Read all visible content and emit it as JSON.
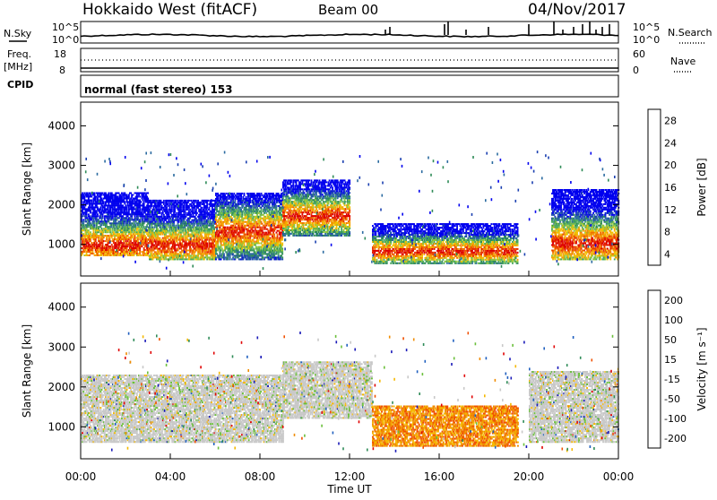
{
  "header": {
    "station": "Hokkaido West (fitACF)",
    "beam": "Beam 00",
    "date": "04/Nov/2017"
  },
  "params": {
    "nsky_label": "N.Sky",
    "nsearch_label": "N.Search",
    "noise_ticks": [
      "10^5",
      "10^0"
    ],
    "freq_label": "Freq.",
    "freq_unit": "[MHz]",
    "freq_ticks": [
      "18",
      "8"
    ],
    "nave_label": "Nave",
    "nave_ticks": [
      "60",
      "0"
    ],
    "cpid_label": "CPID",
    "cpid_text": "normal (fast stereo) 153"
  },
  "colors": {
    "power": [
      "#0000ee",
      "#1a3fb0",
      "#2a6aa0",
      "#2e8b57",
      "#4aa860",
      "#8cc63e",
      "#f0c000",
      "#f5a000",
      "#f07000",
      "#e83000",
      "#dd0000"
    ],
    "velocity": [
      "#1a1ab8",
      "#1f5fbf",
      "#2e8b57",
      "#6abf3a",
      "#c8c8c8",
      "#c8c8c8",
      "#f5b800",
      "#f08c00",
      "#f05000",
      "#e00000"
    ]
  },
  "chart_data": [
    {
      "type": "heatmap",
      "name": "power",
      "ylabel": "Slant Range [km]",
      "yticks": [
        1000,
        2000,
        3000,
        4000
      ],
      "ylim": [
        200,
        4600
      ],
      "xlim_hours": [
        0,
        24
      ],
      "xticks": [
        "00:00",
        "04:00",
        "08:00",
        "12:00",
        "16:00",
        "20:00",
        "00:00"
      ],
      "colorbar": {
        "label": "Power [dB]",
        "ticks": [
          "28",
          "24",
          "20",
          "16",
          "12",
          "8",
          "4"
        ],
        "range": [
          0,
          30
        ]
      },
      "echo_bands": [
        {
          "hours": [
            0,
            3
          ],
          "range_km": [
            700,
            2300
          ],
          "peak_km": 950
        },
        {
          "hours": [
            3,
            6
          ],
          "range_km": [
            600,
            2100
          ],
          "peak_km": 950
        },
        {
          "hours": [
            6,
            9
          ],
          "range_km": [
            600,
            2300
          ],
          "peak_km": 1300
        },
        {
          "hours": [
            9,
            12
          ],
          "range_km": [
            1200,
            2600
          ],
          "peak_km": 1700
        },
        {
          "hours": [
            13,
            16
          ],
          "range_km": [
            500,
            1500
          ],
          "peak_km": 800
        },
        {
          "hours": [
            16,
            19.5
          ],
          "range_km": [
            500,
            1500
          ],
          "peak_km": 800
        },
        {
          "hours": [
            21,
            24
          ],
          "range_km": [
            600,
            2400
          ],
          "peak_km": 1000
        }
      ]
    },
    {
      "type": "heatmap",
      "name": "velocity",
      "ylabel": "Slant Range [km]",
      "yticks": [
        1000,
        2000,
        3000,
        4000
      ],
      "ylim": [
        200,
        4600
      ],
      "xlim_hours": [
        0,
        24
      ],
      "xticks": [
        "00:00",
        "04:00",
        "08:00",
        "12:00",
        "16:00",
        "20:00",
        "00:00"
      ],
      "xlabel": "Time UT",
      "colorbar": {
        "label": "Velocity [m s⁻¹]",
        "ticks": [
          "200",
          "100",
          "50",
          "15",
          "-15",
          "-50",
          "-100",
          "-200"
        ],
        "range": [
          -250,
          250
        ]
      },
      "echo_bands": [
        {
          "hours": [
            0,
            9
          ],
          "range_km": [
            600,
            2300
          ],
          "class": "ground"
        },
        {
          "hours": [
            9,
            13
          ],
          "range_km": [
            1200,
            2600
          ],
          "class": "ground"
        },
        {
          "hours": [
            13,
            19.5
          ],
          "range_km": [
            500,
            1500
          ],
          "class": "receding"
        },
        {
          "hours": [
            20,
            24
          ],
          "range_km": [
            600,
            2400
          ],
          "class": "ground"
        }
      ]
    }
  ]
}
